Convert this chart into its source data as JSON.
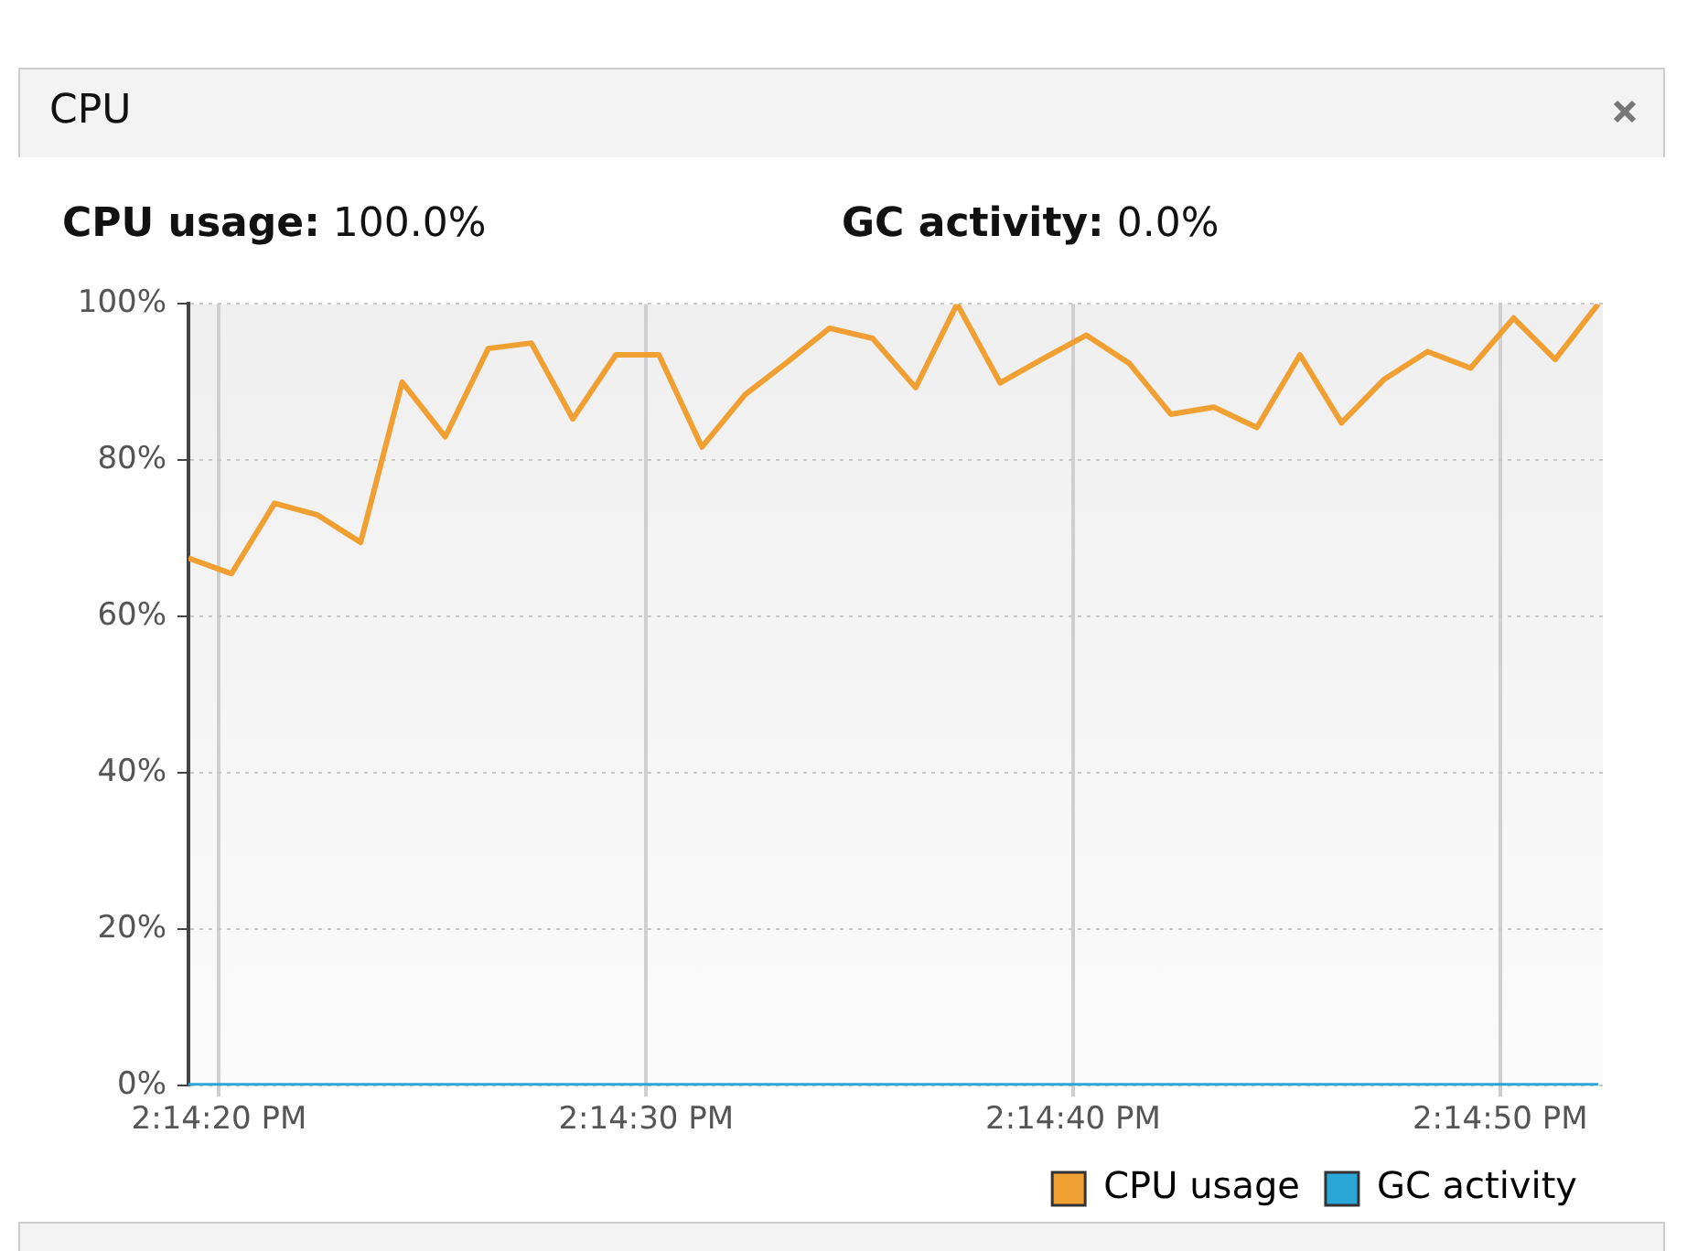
{
  "chart_data": {
    "type": "line",
    "title": "CPU",
    "annotations": [
      "CPU usage: 100.0%",
      "GC activity: 0.0%"
    ],
    "x": [
      14.23869,
      14.23897,
      14.23925,
      14.23953,
      14.23981,
      14.24008,
      14.24036,
      14.24064,
      14.24092,
      14.24119,
      14.24147,
      14.24175,
      14.24203,
      14.24231,
      14.24258,
      14.24286,
      14.24314,
      14.24342,
      14.24369,
      14.24397,
      14.24425,
      14.24453,
      14.24481,
      14.24508,
      14.24536,
      14.24564,
      14.24592,
      14.24619,
      14.24647,
      14.24675,
      14.24703,
      14.24731,
      14.24758,
      14.24786
    ],
    "series": [
      {
        "name": "CPU usage",
        "color": "#f0a032",
        "values": [
          67.5,
          65.5,
          74.5,
          73,
          69.5,
          90,
          83,
          94.3,
          95,
          85.3,
          93.5,
          93.5,
          81.7,
          88.4,
          92.5,
          96.9,
          95.6,
          89.3,
          100,
          89.9,
          93,
          96,
          92.4,
          85.9,
          86.8,
          84.2,
          93.5,
          84.8,
          90.4,
          93.9,
          91.8,
          98.2,
          92.9,
          100
        ]
      },
      {
        "name": "GC activity",
        "color": "#2aa7d6",
        "values": [
          0,
          0,
          0,
          0,
          0,
          0,
          0,
          0,
          0,
          0,
          0,
          0,
          0,
          0,
          0,
          0,
          0,
          0,
          0,
          0,
          0,
          0,
          0,
          0,
          0,
          0,
          0,
          0,
          0,
          0,
          0,
          0,
          0,
          0
        ]
      }
    ],
    "xlim": [
      14.23869,
      14.24789
    ],
    "xticks": [
      {
        "value": 14.238889,
        "label": "2:14:20 PM"
      },
      {
        "value": 14.241667,
        "label": "2:14:30 PM"
      },
      {
        "value": 14.244444,
        "label": "2:14:40 PM"
      },
      {
        "value": 14.247222,
        "label": "2:14:50 PM"
      }
    ],
    "ylim": [
      0,
      100
    ],
    "yticks": [
      {
        "value": 0,
        "label": "0%"
      },
      {
        "value": 20,
        "label": "20%"
      },
      {
        "value": 40,
        "label": "40%"
      },
      {
        "value": 60,
        "label": "60%"
      },
      {
        "value": 80,
        "label": "80%"
      },
      {
        "value": 100,
        "label": "100%"
      }
    ],
    "grid": true,
    "legend": "bottom right",
    "marker": "none",
    "line_style": "solid"
  }
}
